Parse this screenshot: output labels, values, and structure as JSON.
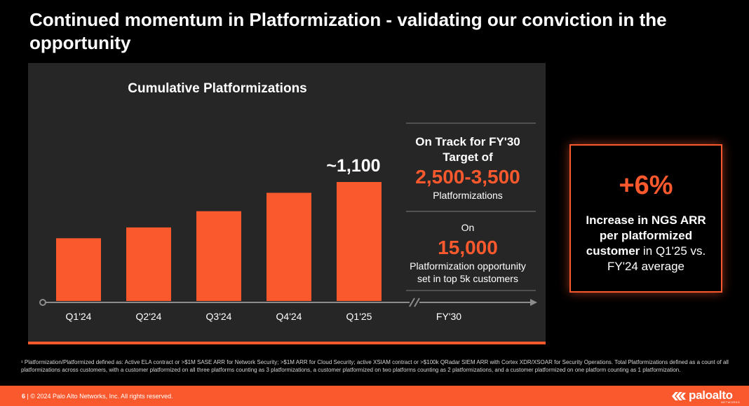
{
  "title": "Continued momentum in Platformization - validating our conviction in the opportunity",
  "colors": {
    "accent": "#fa582d",
    "panel": "#262626",
    "background": "#000000",
    "axis": "#8c8c8c",
    "divider": "#7a7a7a"
  },
  "chart_data": {
    "type": "bar",
    "title": "Cumulative Platformizations",
    "categories": [
      "Q1'24",
      "Q2'24",
      "Q3'24",
      "Q4'24",
      "Q1'25"
    ],
    "values": [
      580,
      680,
      830,
      1000,
      1100
    ],
    "value_label": "~1,100",
    "projection_tick": "FY'30",
    "ylim": [
      0,
      1350
    ],
    "grid": false
  },
  "targets": {
    "fy30": {
      "line1": "On Track for FY'30",
      "line2": "Target of",
      "value": "2,500-3,500",
      "unit": "Platformizations"
    },
    "opportunity": {
      "prefix": "On",
      "value": "15,000",
      "line1": "Platformization opportunity",
      "line2": "set in top 5k customers"
    }
  },
  "highlight": {
    "value": "+6%",
    "bold_text": "Increase in NGS ARR per platformized customer",
    "text": " in Q1'25 vs. FY'24 average"
  },
  "footnote": "¹ Platformization/Platformized defined as: Active ELA contract or >$1M SASE ARR for Network Security; >$1M ARR for Cloud Security; active XSIAM contract or >$100k QRadar SIEM ARR with Cortex XDR/XSOAR for Security Operations. Total Platformizations defined as a count of all platformizations across customers, with a customer platformized on all three platforms counting as 3 platformizations, a customer platformized on two platforms counting as 2 platformizations, and a customer platformized on one platform counting as 1 platformization.",
  "footer": {
    "page": "6",
    "separator": "|",
    "copyright": "© 2024 Palo Alto Networks, Inc. All rights reserved.",
    "logo_text": "paloalto",
    "logo_sub": "NETWORKS"
  }
}
